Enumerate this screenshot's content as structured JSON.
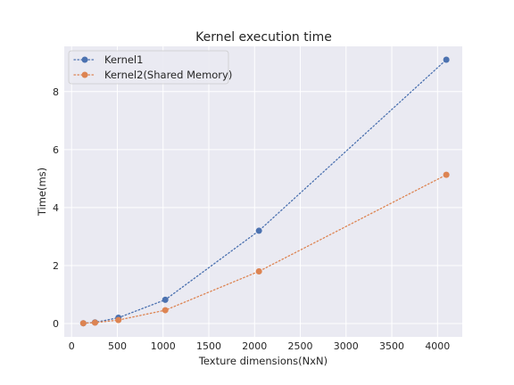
{
  "chart_data": {
    "type": "line",
    "title": "Kernel execution time",
    "xlabel": "Texture dimensions(NxN)",
    "ylabel": "Time(ms)",
    "xlim": [
      -80,
      4270
    ],
    "ylim": [
      -0.46,
      9.56
    ],
    "xticks": [
      0,
      500,
      1000,
      1500,
      2000,
      2500,
      3000,
      3500,
      4000
    ],
    "yticks": [
      0,
      2,
      4,
      6,
      8
    ],
    "grid": true,
    "legend": "top-left",
    "background": "#eaeaf2",
    "series": [
      {
        "name": "Kernel1",
        "color": "#4c72b0",
        "linestyle": "dotted",
        "marker": "circle",
        "x": [
          128,
          256,
          512,
          1024,
          2048,
          4096
        ],
        "y": [
          0.01,
          0.04,
          0.2,
          0.82,
          3.2,
          9.1
        ]
      },
      {
        "name": "Kernel2(Shared Memory)",
        "color": "#dd8452",
        "linestyle": "dotted",
        "marker": "circle",
        "x": [
          128,
          256,
          512,
          1024,
          2048,
          4096
        ],
        "y": [
          0.01,
          0.03,
          0.12,
          0.46,
          1.8,
          5.13
        ]
      }
    ]
  }
}
